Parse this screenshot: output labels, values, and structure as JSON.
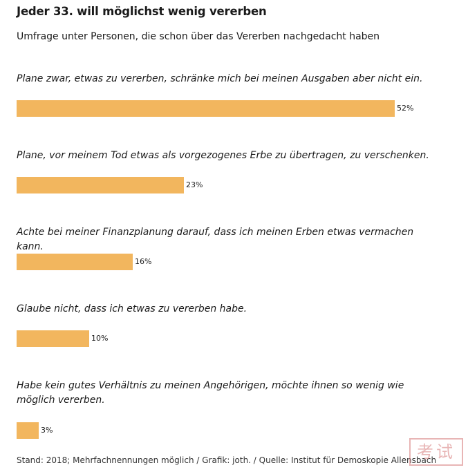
{
  "title": "Jeder 33. will möglichst wenig vererben",
  "subtitle": "Umfrage unter Personen, die schon über das Vererben nachgedacht haben",
  "footer": "Stand: 2018; Mehrfachnennungen möglich / Grafik: joth. / Quelle: Institut für Demoskopie Allensbach",
  "watermark": "考试",
  "colors": {
    "bar": "#f2b65e"
  },
  "chart_data": {
    "type": "bar",
    "orientation": "horizontal",
    "title": "Jeder 33. will möglichst wenig vererben",
    "subtitle": "Umfrage unter Personen, die schon über das Vererben nachgedacht haben",
    "categories": [
      "Plane zwar, etwas zu vererben, schränke mich bei meinen Ausgaben aber nicht ein.",
      "Plane, vor meinem Tod etwas als vorgezogenes Erbe zu übertragen, zu verschenken.",
      "Achte bei meiner Finanzplanung darauf, dass ich meinen Erben etwas vermachen kann.",
      "Glaube nicht, dass ich etwas zu vererben habe.",
      "Habe kein gutes Verhältnis zu meinen Angehörigen, möchte ihnen so wenig wie möglich vererben."
    ],
    "values": [
      52,
      23,
      16,
      10,
      3
    ],
    "value_labels": [
      "52%",
      "23%",
      "16%",
      "10%",
      "3%"
    ],
    "unit": "%",
    "xlim": [
      0,
      52
    ],
    "grid": false,
    "legend": "none"
  }
}
